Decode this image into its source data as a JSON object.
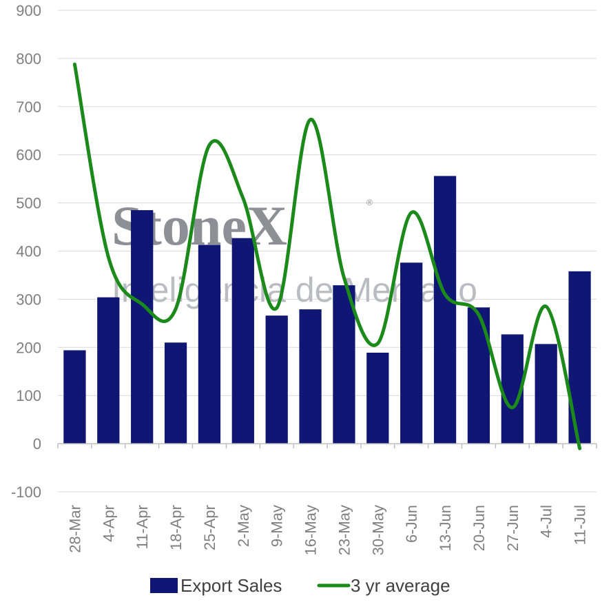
{
  "chart_data": {
    "type": "bar",
    "categories": [
      "28-Mar",
      "4-Apr",
      "11-Apr",
      "18-Apr",
      "25-Apr",
      "2-May",
      "9-May",
      "16-May",
      "23-May",
      "30-May",
      "6-Jun",
      "13-Jun",
      "20-Jun",
      "27-Jun",
      "4-Jul",
      "11-Jul"
    ],
    "series": [
      {
        "name": "Export Sales",
        "type": "bar",
        "color": "#0f1674",
        "values": [
          194,
          304,
          485,
          210,
          413,
          427,
          266,
          279,
          329,
          189,
          376,
          556,
          283,
          227,
          207,
          358
        ]
      },
      {
        "name": "3 yr average",
        "type": "line",
        "color": "#1b8a1b",
        "values": [
          788,
          388,
          290,
          280,
          620,
          510,
          282,
          673,
          345,
          208,
          480,
          310,
          268,
          75,
          285,
          -10
        ]
      }
    ],
    "ylim": [
      -100,
      900
    ],
    "yticks": [
      -100,
      0,
      100,
      200,
      300,
      400,
      500,
      600,
      700,
      800,
      900
    ],
    "grid": true,
    "legend_position": "bottom",
    "title": "",
    "xlabel": "",
    "ylabel": ""
  },
  "watermark": {
    "main": "StoneX",
    "registered": "®",
    "sub": "Inteligência de Mercado"
  }
}
